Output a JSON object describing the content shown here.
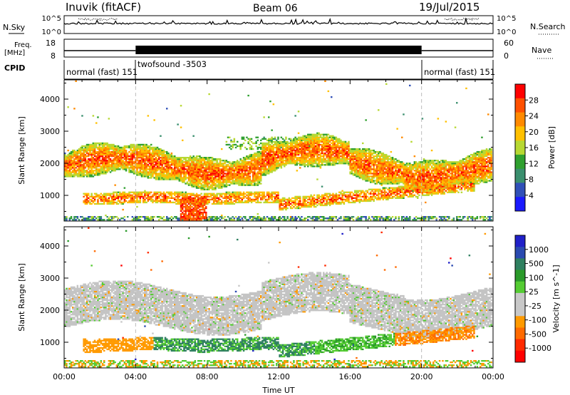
{
  "header": {
    "title": "Inuvik (fitACF)",
    "beam": "Beam 06",
    "date": "19/Jul/2015"
  },
  "top_panels": {
    "nsky_label": "N.Sky",
    "nsky_ticks": [
      "10^5",
      "10^0"
    ],
    "nsearch_label": "N.Search",
    "nsearch_ticks": [
      "10^5",
      "10^0"
    ],
    "freq_label": "Freq.",
    "freq_unit": "[MHz]",
    "freq_ticks": [
      "18",
      "8"
    ],
    "nave_label": "Nave",
    "nave_ticks": [
      "60",
      "0"
    ],
    "cpid_label": "CPID",
    "cpid_segments": [
      {
        "label": "normal (fast) 151",
        "start_h": 0,
        "end_h": 4
      },
      {
        "label": "twofsound -3503",
        "start_h": 4,
        "end_h": 20
      },
      {
        "label": "normal (fast) 151",
        "start_h": 20,
        "end_h": 24
      }
    ]
  },
  "colors": {
    "power_scale": [
      "#1a1aff",
      "#3050b8",
      "#3a8f6e",
      "#2fa02f",
      "#b7d832",
      "#ffc000",
      "#ff8a00",
      "#ff5000",
      "#ff0000"
    ],
    "velocity_scale": [
      "#2020c8",
      "#2a4ab0",
      "#2f8060",
      "#2a9a2a",
      "#55cc33",
      "#c8c8c8",
      "#c8c8c8",
      "#ff9a00",
      "#ff6a00",
      "#ff2a00",
      "#ff0000"
    ]
  },
  "chart_data": [
    {
      "type": "heatmap",
      "name": "power",
      "ylabel": "Slant Range [km]",
      "xlabel": "",
      "xlim": [
        0,
        24
      ],
      "ylim": [
        200,
        4600
      ],
      "yticks": [
        "1000",
        "2000",
        "3000",
        "4000"
      ],
      "colorbar_label": "Power [dB]",
      "colorbar_ticks": [
        "4",
        "8",
        "12",
        "16",
        "20",
        "24",
        "28"
      ]
    },
    {
      "type": "heatmap",
      "name": "velocity",
      "ylabel": "Slant Range [km]",
      "xlabel": "Time UT",
      "xlim": [
        0,
        24
      ],
      "ylim": [
        200,
        4600
      ],
      "xticks": [
        "00:00",
        "04:00",
        "08:00",
        "12:00",
        "16:00",
        "20:00",
        "00:00"
      ],
      "yticks": [
        "1000",
        "2000",
        "3000",
        "4000"
      ],
      "colorbar_label": "Velocity [m s^-1]",
      "colorbar_ticks": [
        "1000",
        "500",
        "100",
        "25",
        "-25",
        "-100",
        "-500",
        "-1000"
      ]
    }
  ]
}
